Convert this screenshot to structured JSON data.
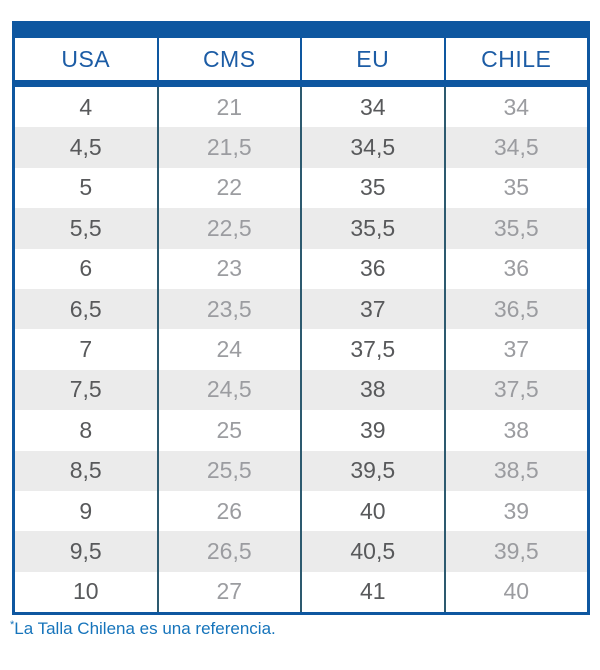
{
  "table": {
    "headers": [
      "USA",
      "CMS",
      "EU",
      "CHILE"
    ],
    "rows": [
      [
        "4",
        "21",
        "34",
        "34"
      ],
      [
        "4,5",
        "21,5",
        "34,5",
        "34,5"
      ],
      [
        "5",
        "22",
        "35",
        "35"
      ],
      [
        "5,5",
        "22,5",
        "35,5",
        "35,5"
      ],
      [
        "6",
        "23",
        "36",
        "36"
      ],
      [
        "6,5",
        "23,5",
        "37",
        "36,5"
      ],
      [
        "7",
        "24",
        "37,5",
        "37"
      ],
      [
        "7,5",
        "24,5",
        "38",
        "37,5"
      ],
      [
        "8",
        "25",
        "39",
        "38"
      ],
      [
        "8,5",
        "25,5",
        "39,5",
        "38,5"
      ],
      [
        "9",
        "26",
        "40",
        "39"
      ],
      [
        "9,5",
        "26,5",
        "40,5",
        "39,5"
      ],
      [
        "10",
        "27",
        "41",
        "40"
      ]
    ]
  },
  "footnote": {
    "marker": "*",
    "text": "La Talla Chilena es una referencia."
  },
  "colors": {
    "brand_blue": "#0e57a0",
    "header_text_blue": "#1c5ca5",
    "body_divider_teal": "#2d5a6f",
    "dark_value_text": "#58595b",
    "light_value_text": "#9b9ca0",
    "stripe_gray": "#ebebeb",
    "footnote_blue": "#1674bb"
  },
  "chart_data": {
    "type": "table",
    "title": "Shoe size conversion",
    "columns": [
      "USA",
      "CMS",
      "EU",
      "CHILE"
    ],
    "rows": [
      [
        4,
        21,
        34,
        34
      ],
      [
        4.5,
        21.5,
        34.5,
        34.5
      ],
      [
        5,
        22,
        35,
        35
      ],
      [
        5.5,
        22.5,
        35.5,
        35.5
      ],
      [
        6,
        23,
        36,
        36
      ],
      [
        6.5,
        23.5,
        37,
        36.5
      ],
      [
        7,
        24,
        37.5,
        37
      ],
      [
        7.5,
        24.5,
        38,
        37.5
      ],
      [
        8,
        25,
        39,
        38
      ],
      [
        8.5,
        25.5,
        39.5,
        38.5
      ],
      [
        9,
        26,
        40,
        39
      ],
      [
        9.5,
        26.5,
        40.5,
        39.5
      ],
      [
        10,
        27,
        41,
        40
      ]
    ],
    "annotations": [
      "*La Talla Chilena es una referencia."
    ],
    "layout": "striped rows, blue header band top and below header, decimal comma notation"
  }
}
